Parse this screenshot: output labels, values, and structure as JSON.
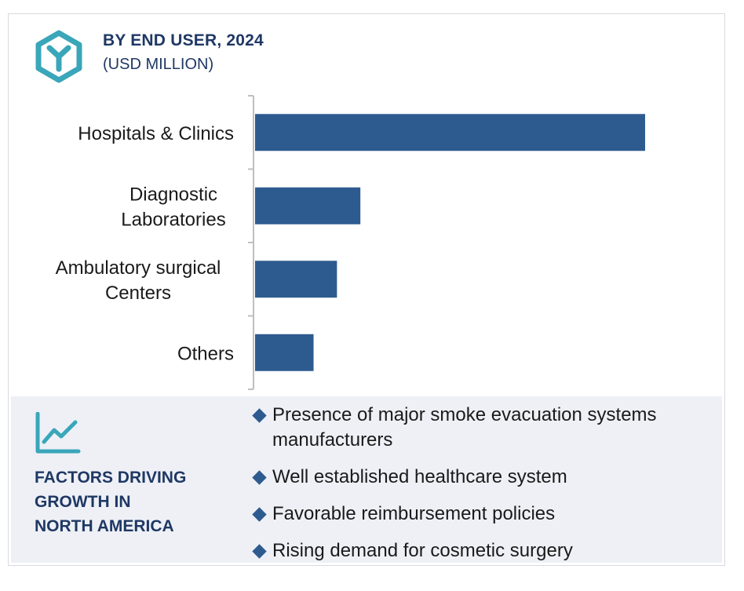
{
  "header": {
    "title": "BY END USER, 2024",
    "subtitle": "(USD MILLION)",
    "logo_icon": "hexagon-y-icon",
    "accent_color": "#3aa6b9",
    "title_color": "#1f3864"
  },
  "chart_data": {
    "type": "bar",
    "orientation": "horizontal",
    "categories": [
      [
        "Hospitals & Clinics"
      ],
      [
        "Diagnostic",
        "Laboratories"
      ],
      [
        "Ambulatory surgical",
        "Centers"
      ],
      [
        "Others"
      ]
    ],
    "values": [
      100,
      27,
      21,
      15
    ],
    "xlim": [
      0,
      100
    ],
    "bar_color": "#2e5b8f",
    "grid": false,
    "title": "",
    "xlabel": "",
    "ylabel": ""
  },
  "factors": {
    "icon": "trend-line-icon",
    "title_lines": [
      "FACTORS DRIVING",
      "GROWTH IN",
      "NORTH AMERICA"
    ],
    "bullets": [
      [
        "Presence of major smoke evacuation systems",
        "manufacturers"
      ],
      [
        "Well established healthcare system"
      ],
      [
        "Favorable reimbursement policies"
      ],
      [
        "Rising demand for cosmetic surgery"
      ]
    ],
    "bullet_color": "#2e5b8f",
    "panel_color": "#eef0f6"
  }
}
